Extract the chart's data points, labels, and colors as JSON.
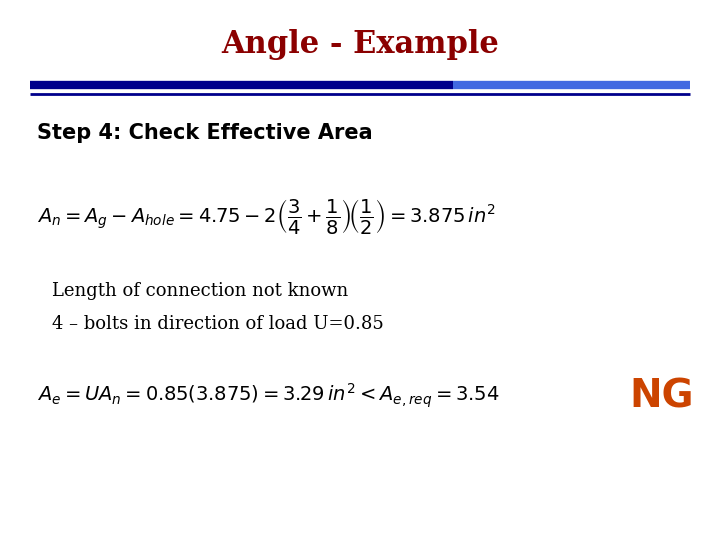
{
  "title": "Angle - Example",
  "title_color": "#8B0000",
  "title_fontsize": 22,
  "title_fontweight": "bold",
  "bg_color": "#FFFFFF",
  "bar1_color": "#00008B",
  "bar2_color": "#4169E1",
  "step_text": "Step 4: Check Effective Area",
  "eq1": "$A_n = A_g - A_{hole} = 4.75 - 2\\left(\\dfrac{3}{4} + \\dfrac{1}{8}\\right)\\!\\left(\\dfrac{1}{2}\\right) = 3.875\\,in^2$",
  "note_line1": "Length of connection not known",
  "note_line2": "4 – bolts in direction of load U=0.85",
  "eq2": "$A_e = UA_n = 0.85(3.875) = 3.29\\,in^2 < A_{e,req} = 3.54$",
  "ng_text": "NG",
  "ng_color": "#CC4400",
  "text_color": "#000000",
  "step_fontsize": 15,
  "eq_fontsize": 14,
  "note_fontsize": 13,
  "ng_fontsize": 28
}
